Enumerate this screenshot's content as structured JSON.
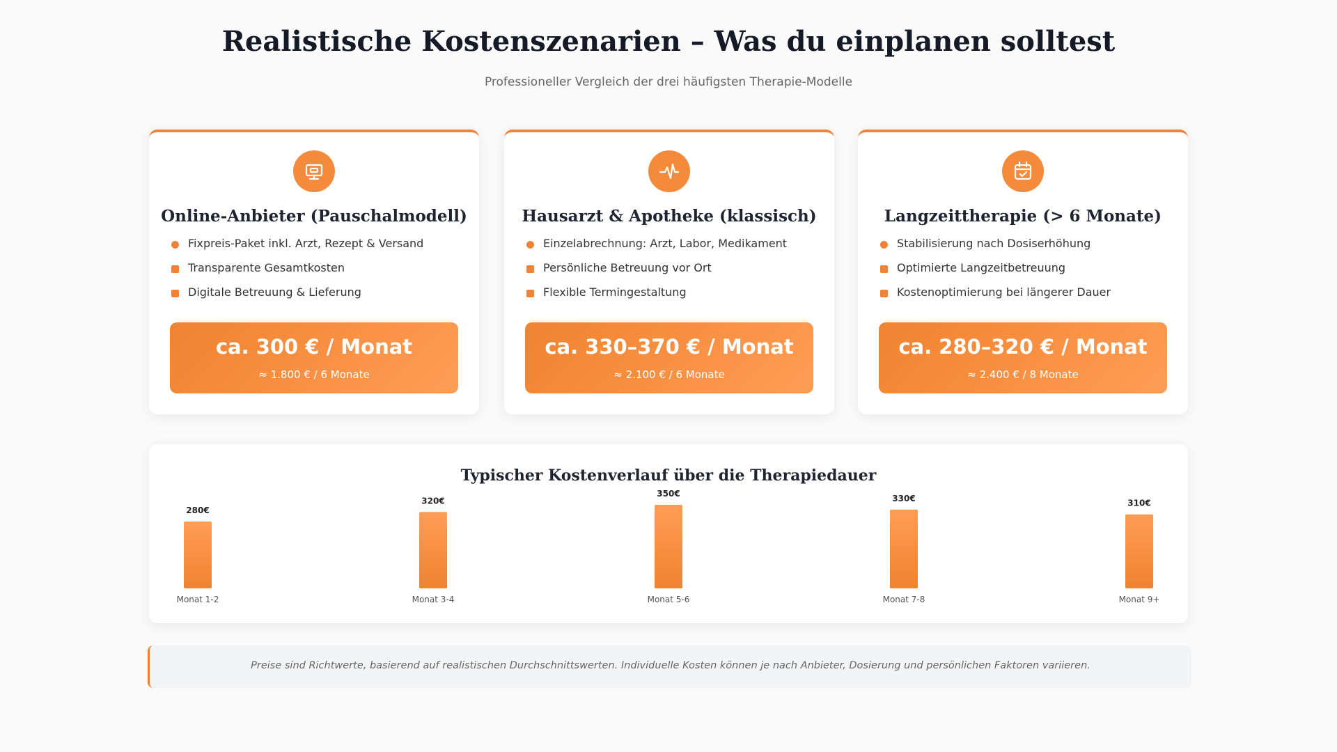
{
  "header": {
    "title": "Realistische Kostenszenarien – Was du einplanen solltest",
    "subtitle": "Professioneller Vergleich der drei häufigsten Therapie-Modelle"
  },
  "cards": [
    {
      "title": "Online-Anbieter (Pauschalmodell)",
      "features": [
        "Fixpreis-Paket inkl. Arzt, Rezept & Versand",
        "Transparente Gesamtkosten",
        "Digitale Betreuung & Lieferung"
      ],
      "price": "ca. 300 € / Monat",
      "total": "≈ 1.800 € / 6 Monate"
    },
    {
      "title": "Hausarzt & Apotheke (klassisch)",
      "features": [
        "Einzelabrechnung: Arzt, Labor, Medikament",
        "Persönliche Betreuung vor Ort",
        "Flexible Termingestaltung"
      ],
      "price": "ca. 330–370 € / Monat",
      "total": "≈ 2.100 € / 6 Monate"
    },
    {
      "title": "Langzeittherapie (> 6 Monate)",
      "features": [
        "Stabilisierung nach Dosiserhöhung",
        "Optimierte Langzeitbetreuung",
        "Kostenoptimierung bei längerer Dauer"
      ],
      "price": "ca. 280–320 € / Monat",
      "total": "≈ 2.400 € / 8 Monate"
    }
  ],
  "chart": {
    "type": "bar",
    "title": "Typischer Kostenverlauf über die Therapiedauer",
    "categories": [
      "Monat 1-2",
      "Monat 3-4",
      "Monat 5-6",
      "Monat 7-8",
      "Monat 9+"
    ],
    "values": [
      280,
      320,
      350,
      330,
      310
    ],
    "value_labels": [
      "280€",
      "320€",
      "350€",
      "330€",
      "310€"
    ],
    "color": "#f48a3c"
  },
  "footnote": "Preise sind Richtwerte, basierend auf realistischen Durchschnittswerten. Individuelle Kosten können je nach Anbieter, Dosierung und persönlichen Faktoren variieren."
}
